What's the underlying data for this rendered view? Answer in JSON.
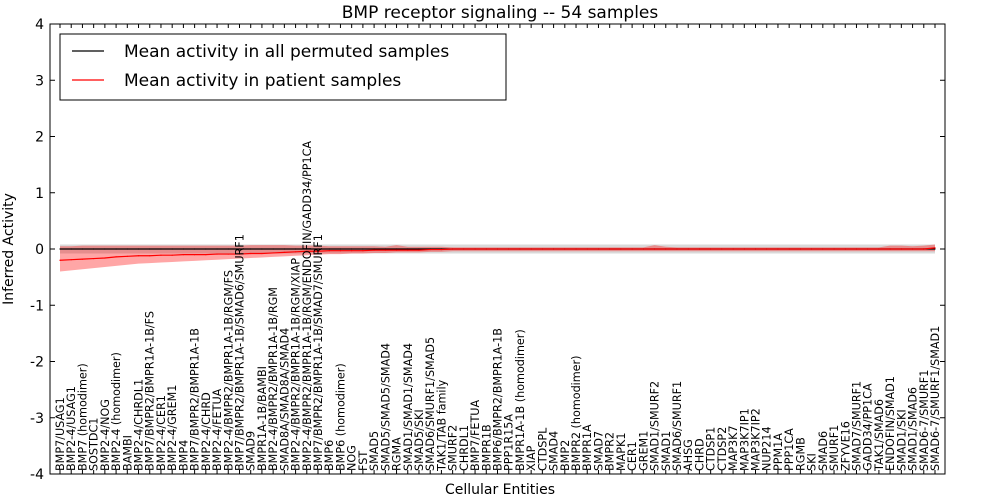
{
  "chart_data": {
    "type": "line",
    "title": "BMP receptor signaling -- 54 samples",
    "xlabel": "Cellular Entities",
    "ylabel": "Inferred Activity",
    "ylim": [
      -4,
      4
    ],
    "yticks": [
      -4,
      -3,
      -2,
      -1,
      0,
      1,
      2,
      3,
      4
    ],
    "grid": false,
    "legend_placement": "top-left",
    "categories": [
      "BMP7/USAG1",
      "BMP2-4/USAG1",
      "BMP7 (homodimer)",
      "SOSTDC1",
      "BMP2-4/NOG",
      "BMP2-4 (homodimer)",
      "BAMBI",
      "BMP2-4/CHRDL1",
      "BMP7/BMPR2/BMPR1A-1B/FS",
      "BMP2-4/CER1",
      "BMP2-4/GREM1",
      "BMP4",
      "BMP7/BMPR2/BMPR1A-1B",
      "BMP2-4/CHRD",
      "BMP2-4/FETUA",
      "BMP2-4/BMPR2/BMPR1A-1B/RGM/FS",
      "BMP7/BMPR2/BMPR1A-1B/SMAD6/SMURF1",
      "SMAD9",
      "BMPR1A-1B/BAMBI",
      "BMP2-4/BMPR2/BMPR1A-1B/RGM",
      "SMAD8A/SMAD8A/SMAD4",
      "BMP2-4/BMPR2/BMPR1A-1B/RGM/XIAP",
      "BMP2-4/BMPR2/BMPR1A-1B/RGM/ENDOFIN/GADD34/PP1CA",
      "BMP7/BMPR2/BMPR1A-1B/SMAD7/SMURF1",
      "BMP6",
      "BMP6 (homodimer)",
      "NOG",
      "FST",
      "SMAD5",
      "SMAD5/SMAD5/SMAD4",
      "RGMA",
      "SMAD1/SMAD1/SMAD4",
      "SMAD5/SKI",
      "SMAD6/SMURF1/SMAD5",
      "TAK1/TAB family",
      "SMURF2",
      "CHRDL1",
      "BMP7/FETUA",
      "BMPR1B",
      "BMP6/BMPR2/BMPR1A-1B",
      "PPP1R15A",
      "BMPR1A-1B (homodimer)",
      "XIAP",
      "CTDSPL",
      "SMAD4",
      "BMP2",
      "BMPR2 (homodimer)",
      "BMPR1A",
      "SMAD7",
      "BMPR2",
      "MAPK1",
      "CER1",
      "GREM1",
      "SMAD1/SMURF2",
      "SMAD1",
      "SMAD6/SMURF1",
      "AHSG",
      "CHRD",
      "CTDSP1",
      "CTDSP2",
      "MAP3K7",
      "MAP3K7IP1",
      "MAP3K7IP2",
      "NUP214",
      "PPM1A",
      "PPP1CA",
      "RGMB",
      "SKI",
      "SMAD6",
      "SMURF1",
      "ZFYVE16",
      "SMAD7/SMURF1",
      "GADD34/PP1CA",
      "TAK1/SMAD6",
      "ENDOFIN/SMAD1",
      "SMAD1/SKI",
      "SMAD1/SMAD6",
      "SMAD6-7/SMURF1",
      "SMAD6-7/SMURF1/SMAD1"
    ],
    "series": [
      {
        "name": "Mean activity in all permuted samples",
        "color": "#000000",
        "values": [
          0,
          0,
          0,
          0,
          0,
          0,
          0,
          0,
          0,
          0,
          0,
          0,
          0,
          0,
          0,
          0,
          0,
          0,
          0,
          0,
          0,
          0,
          0,
          0,
          0,
          0,
          0,
          0,
          0,
          0,
          0,
          0,
          0,
          0,
          0,
          0,
          0,
          0,
          0,
          0,
          0,
          0,
          0,
          0,
          0,
          0,
          0,
          0,
          0,
          0,
          0,
          0,
          0,
          0,
          0,
          0,
          0,
          0,
          0,
          0,
          0,
          0,
          0,
          0,
          0,
          0,
          0,
          0,
          0,
          0,
          0,
          0,
          0,
          0,
          0,
          0,
          0,
          0,
          0
        ],
        "band": 0.08
      },
      {
        "name": "Mean activity in patient samples",
        "color": "#ff0000",
        "values": [
          -0.2,
          -0.19,
          -0.18,
          -0.17,
          -0.16,
          -0.14,
          -0.13,
          -0.12,
          -0.12,
          -0.11,
          -0.11,
          -0.1,
          -0.1,
          -0.1,
          -0.09,
          -0.09,
          -0.09,
          -0.08,
          -0.08,
          -0.07,
          -0.06,
          -0.05,
          -0.04,
          -0.04,
          -0.03,
          -0.03,
          -0.03,
          -0.03,
          -0.02,
          -0.02,
          -0.02,
          -0.02,
          -0.02,
          -0.01,
          -0.01,
          0,
          0,
          0,
          0,
          0,
          0,
          0,
          0,
          0,
          0,
          0,
          0,
          0,
          0,
          0,
          0,
          0,
          0,
          0,
          0,
          0,
          0,
          0,
          0,
          0,
          0,
          0,
          0,
          0,
          0,
          0,
          0,
          0,
          0,
          0,
          0,
          0,
          0,
          0,
          0,
          0,
          0,
          0,
          0.02
        ],
        "band_upper": [
          0.05,
          0.05,
          0.06,
          0.06,
          0.06,
          0.06,
          0.06,
          0.06,
          0.06,
          0.06,
          0.06,
          0.06,
          0.06,
          0.06,
          0.06,
          0.06,
          0.06,
          0.07,
          0.07,
          0.07,
          0.07,
          0.06,
          0.06,
          0.06,
          0.05,
          0.05,
          0.05,
          0.05,
          0.05,
          0.04,
          0.07,
          0.04,
          0.04,
          0.04,
          0.04,
          0.03,
          0.03,
          0.03,
          0.03,
          0.03,
          0.03,
          0.03,
          0.03,
          0.03,
          0.03,
          0.03,
          0.03,
          0.03,
          0.03,
          0.03,
          0.03,
          0.03,
          0.03,
          0.07,
          0.04,
          0.03,
          0.03,
          0.03,
          0.03,
          0.03,
          0.03,
          0.03,
          0.03,
          0.03,
          0.03,
          0.03,
          0.03,
          0.03,
          0.03,
          0.03,
          0.03,
          0.03,
          0.03,
          0.03,
          0.06,
          0.06,
          0.05,
          0.06,
          0.08
        ],
        "band_lower": [
          -0.4,
          -0.38,
          -0.36,
          -0.34,
          -0.32,
          -0.3,
          -0.28,
          -0.26,
          -0.25,
          -0.24,
          -0.23,
          -0.22,
          -0.21,
          -0.2,
          -0.19,
          -0.18,
          -0.17,
          -0.16,
          -0.15,
          -0.14,
          -0.13,
          -0.12,
          -0.11,
          -0.1,
          -0.09,
          -0.09,
          -0.08,
          -0.08,
          -0.07,
          -0.07,
          -0.06,
          -0.06,
          -0.06,
          -0.05,
          -0.05,
          -0.04,
          -0.04,
          -0.04,
          -0.04,
          -0.04,
          -0.04,
          -0.04,
          -0.04,
          -0.04,
          -0.04,
          -0.04,
          -0.04,
          -0.04,
          -0.04,
          -0.04,
          -0.04,
          -0.04,
          -0.04,
          -0.04,
          -0.04,
          -0.04,
          -0.04,
          -0.04,
          -0.04,
          -0.04,
          -0.04,
          -0.04,
          -0.04,
          -0.04,
          -0.04,
          -0.04,
          -0.04,
          -0.04,
          -0.04,
          -0.04,
          -0.04,
          -0.04,
          -0.04,
          -0.04,
          -0.04,
          -0.04,
          -0.04,
          -0.04,
          -0.04
        ]
      }
    ]
  }
}
